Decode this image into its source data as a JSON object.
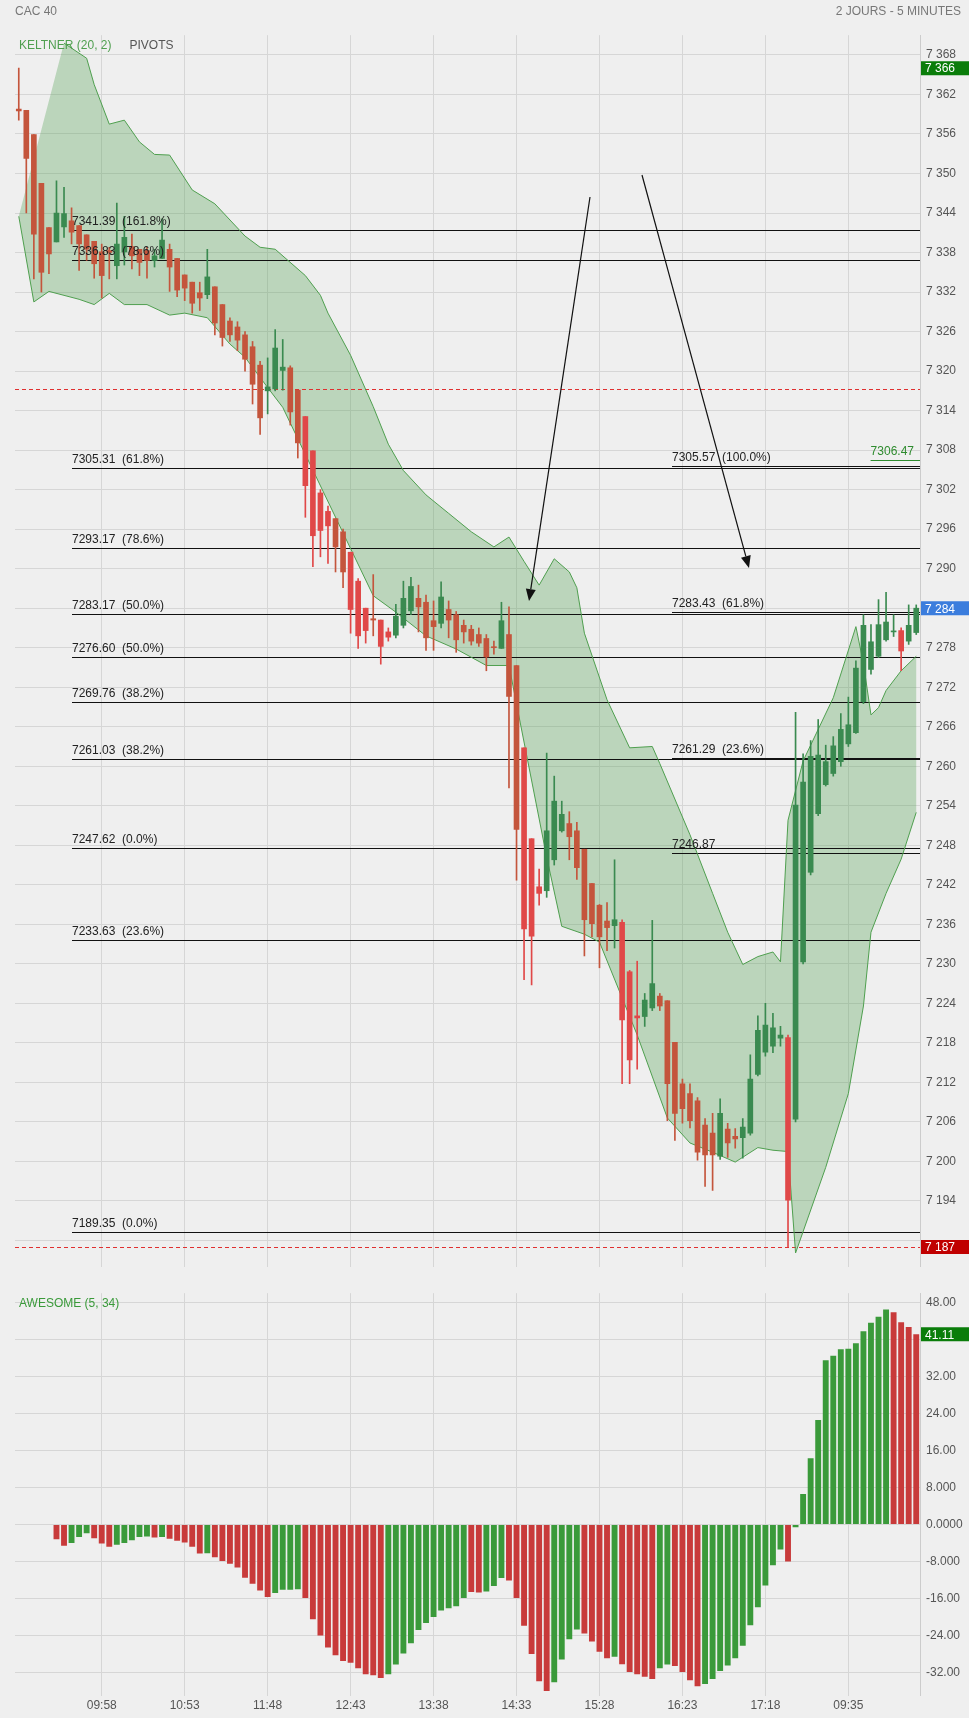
{
  "chart_data": [
    {
      "type": "candlestick",
      "title": "CAC 40",
      "subtitle": "2 JOURS - 5 MINUTES",
      "ohlc": [
        [
          7359.8,
          7366,
          7358.1,
          7359.5
        ],
        [
          7359.6,
          7359.6,
          7344.0,
          7352.3
        ],
        [
          7355.9,
          7355.9,
          7334.0,
          7340.8
        ],
        [
          7348.5,
          7348.5,
          7332.0,
          7335.0
        ],
        [
          7341.8,
          7341.8,
          7334.8,
          7337.8
        ],
        [
          7339.6,
          7348.9,
          7339.6,
          7344.0
        ],
        [
          7341.9,
          7347.9,
          7340.3,
          7343.9
        ],
        [
          7342.8,
          7344.8,
          7339.3,
          7341.1
        ],
        [
          7342.1,
          7342.1,
          7335.3,
          7339.3
        ],
        [
          7340.7,
          7340.7,
          7336.8,
          7338.5
        ],
        [
          7339.7,
          7339.7,
          7334.1,
          7336.3
        ],
        [
          7338.1,
          7339.3,
          7331.1,
          7334.5
        ],
        [
          7338.3,
          7338.8,
          7334.0,
          7338.0
        ],
        [
          7336.0,
          7345.5,
          7334.0,
          7339.3
        ],
        [
          7338.1,
          7343.5,
          7336.1,
          7340.3
        ],
        [
          7338.9,
          7340.8,
          7335.5,
          7337.5
        ],
        [
          7338.5,
          7338.5,
          7334.5,
          7336.5
        ],
        [
          7338.3,
          7338.8,
          7334.1,
          7336.8
        ],
        [
          7336.8,
          7338.5,
          7335.8,
          7337.5
        ],
        [
          7337.1,
          7343.1,
          7337.1,
          7339.9
        ],
        [
          7338.5,
          7339.3,
          7332.1,
          7335.8
        ],
        [
          7337.1,
          7337.1,
          7331.3,
          7332.3
        ],
        [
          7334.6,
          7334.6,
          7330.7,
          7332.6
        ],
        [
          7333.5,
          7333.5,
          7328.8,
          7330.3
        ],
        [
          7331.9,
          7333.5,
          7329.2,
          7331.1
        ],
        [
          7331.6,
          7338.5,
          7331.0,
          7334.3
        ],
        [
          7332.8,
          7332.8,
          7325.5,
          7327.3
        ],
        [
          7330.1,
          7330.1,
          7323.8,
          7325.1
        ],
        [
          7327.6,
          7328.1,
          7324.5,
          7325.5
        ],
        [
          7326.7,
          7327.5,
          7323.1,
          7324.7
        ],
        [
          7325.5,
          7326.0,
          7320.0,
          7321.8
        ],
        [
          7323.7,
          7324.5,
          7315.0,
          7318.0
        ],
        [
          7320.9,
          7321.5,
          7310.4,
          7312.9
        ],
        [
          7317.0,
          7322.0,
          7313.5,
          7317.6
        ],
        [
          7317.3,
          7326.3,
          7317.0,
          7323.5
        ],
        [
          7320.1,
          7324.8,
          7317.1,
          7320.6
        ],
        [
          7320.5,
          7320.8,
          7311.8,
          7313.8
        ],
        [
          7317.1,
          7317.1,
          7306.8,
          7309.1
        ],
        [
          7313.1,
          7313.1,
          7297.8,
          7302.6
        ],
        [
          7307.9,
          7307.9,
          7290.3,
          7295.0
        ],
        [
          7301.5,
          7302.0,
          7291.8,
          7295.8
        ],
        [
          7298.7,
          7299.5,
          7290.8,
          7296.5
        ],
        [
          7297.6,
          7297.6,
          7289.5,
          7293.3
        ],
        [
          7295.6,
          7296.0,
          7287.1,
          7289.5
        ],
        [
          7292.5,
          7292.5,
          7280.2,
          7283.8
        ],
        [
          7288.1,
          7288.5,
          7277.9,
          7279.8
        ],
        [
          7284.0,
          7284.0,
          7278.7,
          7280.6
        ],
        [
          7282.4,
          7289.1,
          7279.8,
          7282.2
        ],
        [
          7282.2,
          7282.2,
          7275.5,
          7278.2
        ],
        [
          7280.4,
          7281.0,
          7279.0,
          7279.6
        ],
        [
          7279.9,
          7284.6,
          7279.5,
          7282.8
        ],
        [
          7281.4,
          7288.1,
          7281.0,
          7285.5
        ],
        [
          7283.6,
          7288.7,
          7283.0,
          7287.3
        ],
        [
          7285.5,
          7287.5,
          7280.4,
          7284.2
        ],
        [
          7284.9,
          7286.0,
          7277.6,
          7279.5
        ],
        [
          7282.1,
          7285.1,
          7277.6,
          7281.2
        ],
        [
          7281.7,
          7288.0,
          7281.0,
          7285.7
        ],
        [
          7283.8,
          7285.1,
          7279.5,
          7282.2
        ],
        [
          7283.0,
          7283.5,
          7277.3,
          7279.2
        ],
        [
          7281.4,
          7282.2,
          7278.7,
          7280.4
        ],
        [
          7280.8,
          7281.4,
          7278.4,
          7279.0
        ],
        [
          7280.0,
          7281.0,
          7278.2,
          7278.7
        ],
        [
          7279.4,
          7280.0,
          7274.5,
          7276.6
        ],
        [
          7278.0,
          7279.0,
          7277.0,
          7278.0
        ],
        [
          7277.9,
          7284.9,
          7277.9,
          7282.1
        ],
        [
          7280.0,
          7284.2,
          7256.7,
          7270.6
        ],
        [
          7275.3,
          7275.3,
          7242.7,
          7250.4
        ],
        [
          7262.8,
          7262.8,
          7227.6,
          7235.3
        ],
        [
          7249.0,
          7249.0,
          7226.8,
          7234.2
        ],
        [
          7241.7,
          7244.4,
          7238.9,
          7240.7
        ],
        [
          7241.1,
          7262.0,
          7240.1,
          7250.2
        ],
        [
          7245.8,
          7258.5,
          7245.0,
          7254.7
        ],
        [
          7250.2,
          7254.7,
          7250.0,
          7252.7
        ],
        [
          7251.3,
          7253.1,
          7245.8,
          7249.3
        ],
        [
          7250.2,
          7251.5,
          7242.8,
          7244.6
        ],
        [
          7247.4,
          7247.4,
          7231.2,
          7236.7
        ],
        [
          7242.2,
          7242.2,
          7234.1,
          7236.1
        ],
        [
          7238.9,
          7239.0,
          7229.4,
          7234.1
        ],
        [
          7236.5,
          7239.3,
          7232.0,
          7235.5
        ],
        [
          7235.8,
          7245.8,
          7232.4,
          7236.7
        ],
        [
          7236.3,
          7236.7,
          7211.8,
          7221.5
        ],
        [
          7228.8,
          7229.0,
          7211.8,
          7215.4
        ],
        [
          7222.1,
          7230.4,
          7214.0,
          7221.8
        ],
        [
          7222.0,
          7225.5,
          7220.5,
          7224.5
        ],
        [
          7223.3,
          7236.6,
          7222.9,
          7227.0
        ],
        [
          7225.1,
          7225.5,
          7222.9,
          7223.6
        ],
        [
          7224.4,
          7224.4,
          7206.2,
          7211.8
        ],
        [
          7218.1,
          7218.1,
          7203.2,
          7207.3
        ],
        [
          7211.8,
          7212.5,
          7205.8,
          7208.0
        ],
        [
          7210.3,
          7211.8,
          7205.1,
          7206.2
        ],
        [
          7209.2,
          7209.7,
          7200.2,
          7201.4
        ],
        [
          7205.5,
          7206.5,
          7196.2,
          7201.0
        ],
        [
          7204.3,
          7207.3,
          7195.6,
          7201.0
        ],
        [
          7200.8,
          7209.5,
          7200.3,
          7207.3
        ],
        [
          7204.9,
          7205.8,
          7200.6,
          7202.8
        ],
        [
          7203.8,
          7205.0,
          7202.0,
          7203.4
        ],
        [
          7203.6,
          7206.5,
          7200.5,
          7205.2
        ],
        [
          7204.3,
          7216.2,
          7204.0,
          7212.5
        ],
        [
          7213.2,
          7222.1,
          7213.0,
          7219.9
        ],
        [
          7216.6,
          7224.0,
          7216.0,
          7220.7
        ],
        [
          7217.5,
          7222.5,
          7216.5,
          7220.3
        ],
        [
          7218.7,
          7220.5,
          7217.5,
          7219.2
        ],
        [
          7218.8,
          7219.2,
          7187.0,
          7194.1
        ],
        [
          7206.4,
          7268.2,
          7206.0,
          7254.1
        ],
        [
          7230.3,
          7261.9,
          7230.0,
          7257.6
        ],
        [
          7243.9,
          7263.9,
          7243.5,
          7261.5
        ],
        [
          7252.8,
          7267.1,
          7252.5,
          7261.7
        ],
        [
          7257.2,
          7263.2,
          7257.0,
          7260.7
        ],
        [
          7258.9,
          7264.5,
          7258.5,
          7263.1
        ],
        [
          7260.7,
          7268.0,
          7260.0,
          7265.6
        ],
        [
          7263.4,
          7270.5,
          7263.0,
          7266.3
        ],
        [
          7265.1,
          7276.0,
          7265.0,
          7274.9
        ],
        [
          7269.8,
          7283.0,
          7269.5,
          7281.4
        ],
        [
          7274.7,
          7281.5,
          7274.0,
          7278.9
        ],
        [
          7276.7,
          7285.3,
          7276.5,
          7281.5
        ],
        [
          7279.2,
          7286.4,
          7279.0,
          7281.9
        ],
        [
          7280.4,
          7283.0,
          7279.7,
          7280.4
        ],
        [
          7280.6,
          7281.0,
          7274.5,
          7277.5
        ],
        [
          7279.0,
          7284.5,
          7278.5,
          7281.4
        ],
        [
          7280.3,
          7284.5,
          7280.0,
          7284.0
        ]
      ],
      "colors": [
        "#c4553c",
        "#c4553c",
        "#c4553c",
        "#c4553c",
        "#c4553c",
        "#3a8a50",
        "#3a8a50",
        "#c4553c",
        "#c4553c",
        "#c4553c",
        "#c4553c",
        "#c4553c",
        "#c4553c",
        "#3a8a50",
        "#3a8a50",
        "#c4553c",
        "#c4553c",
        "#c4553c",
        "#3a8a50",
        "#3a8a50",
        "#c4553c",
        "#c4553c",
        "#c4553c",
        "#c4553c",
        "#c4553c",
        "#3a8a50",
        "#c4553c",
        "#c4553c",
        "#c4553c",
        "#c4553c",
        "#c4553c",
        "#c4553c",
        "#c4553c",
        "#3a8a50",
        "#3a8a50",
        "#3a8a50",
        "#c4553c",
        "#c4553c",
        "#e04848",
        "#e04848",
        "#e04848",
        "#e04848",
        "#c4553c",
        "#c4553c",
        "#e04848",
        "#e04848",
        "#e04848",
        "#c4553c",
        "#e04848",
        "#e04848",
        "#3a8a50",
        "#3a8a50",
        "#3a8a50",
        "#c4553c",
        "#c4553c",
        "#c4553c",
        "#3a8a50",
        "#c4553c",
        "#c4553c",
        "#c4553c",
        "#c4553c",
        "#c4553c",
        "#c4553c",
        "#c4553c",
        "#3a8a50",
        "#c4553c",
        "#c4553c",
        "#e04848",
        "#e04848",
        "#e04848",
        "#3a8a50",
        "#3a8a50",
        "#3a8a50",
        "#c4553c",
        "#c4553c",
        "#c4553c",
        "#c4553c",
        "#c4553c",
        "#c4553c",
        "#3a8a50",
        "#e04848",
        "#e04848",
        "#e04848",
        "#3a8a50",
        "#3a8a50",
        "#c4553c",
        "#c4553c",
        "#c4553c",
        "#c4553c",
        "#c4553c",
        "#c4553c",
        "#c4553c",
        "#c4553c",
        "#3a8a50",
        "#c4553c",
        "#c4553c",
        "#3a8a50",
        "#3a8a50",
        "#3a8a50",
        "#3a8a50",
        "#3a8a50",
        "#3a8a50",
        "#e04848",
        "#3a8a50",
        "#3a8a50",
        "#3a8a50",
        "#3a8a50",
        "#3a8a50",
        "#3a8a50",
        "#3a8a50",
        "#3a8a50",
        "#3a8a50",
        "#3a8a50",
        "#3a8a50",
        "#3a8a50",
        "#3a8a50",
        "#3a8a50",
        "#e04848",
        "#3a8a50",
        "#3a8a50"
      ],
      "series": [
        {
          "name": "KELTNER (20, 2)",
          "type": "line",
          "color": "#4f9f4f",
          "values": [
            null,
            null,
            null,
            null,
            null,
            null,
            7369.8,
            null,
            null,
            7367.5,
            7363.5,
            null,
            7357.5,
            null,
            7358.1,
            null,
            7354.8,
            null,
            7352.9,
            null,
            7352.8,
            null,
            null,
            7347.5,
            null,
            null,
            7345.4,
            null,
            null,
            null,
            7340.5,
            null,
            7338.8,
            null,
            7338.5,
            null,
            null,
            null,
            7334.5,
            null,
            7331.5,
            7328.8,
            null,
            null,
            7322.4,
            null,
            null,
            7314.6,
            null,
            7308.9,
            null,
            7304.9,
            null,
            null,
            7301.2,
            null,
            null,
            7298.4,
            null,
            null,
            7295.6,
            null,
            null,
            7293.3,
            null,
            7294.8,
            null,
            7291.1,
            null,
            7287.5,
            null,
            7291.5,
            null,
            7289.5,
            7287.1,
            7280.2,
            null,
            null,
            7270.1,
            null,
            null,
            7262.8,
            null,
            null,
            7263.0,
            7260.4,
            null,
            null,
            null,
            7249.6,
            null,
            null,
            7240.7,
            null,
            7234.8,
            null,
            7229.9,
            null,
            7231.1,
            null,
            7231.8,
            7230.3,
            7251.8,
            null,
            7260.8,
            null,
            null,
            null,
            7270.4,
            null,
            null,
            7281.2,
            7275.6,
            7267.8,
            7268.9,
            7271.5,
            null,
            7274.5,
            null,
            7276.7
          ]
        },
        {
          "type": "line",
          "color": "#4f9f4f",
          "values": [
            7343.5,
            null,
            7330.5,
            null,
            7332.1,
            null,
            7331.5,
            null,
            7330.9,
            null,
            7330.1,
            null,
            7331.8,
            null,
            7330.1,
            null,
            null,
            7330.1,
            null,
            null,
            7328.5,
            null,
            7328.8,
            null,
            null,
            7328.1,
            null,
            null,
            7324.1,
            null,
            7322.1,
            null,
            null,
            7317.5,
            null,
            7314.5,
            null,
            null,
            null,
            null,
            null,
            null,
            null,
            null,
            null,
            null,
            null,
            7285.9,
            null,
            null,
            7283.4,
            null,
            null,
            null,
            7279.8,
            null,
            null,
            null,
            7277.8,
            null,
            null,
            null,
            7275.3,
            null,
            null,
            7275.3,
            null,
            null,
            null,
            null,
            7246.2,
            null,
            7235.7,
            null,
            null,
            7234.5,
            null,
            7233.3,
            null,
            null,
            null,
            null,
            7219.2,
            null,
            null,
            null,
            7206.6,
            null,
            null,
            7202.8,
            null,
            null,
            7201.4,
            null,
            null,
            7199.9,
            null,
            null,
            7202.1,
            null,
            7201.7,
            null,
            7201.5,
            7186.1,
            null,
            null,
            null,
            7199.1,
            null,
            null,
            7210.3,
            null,
            7223.6,
            7234.8,
            null,
            7240.7,
            null,
            7245.9,
            null,
            7253.0
          ]
        }
      ],
      "ylim": [
        7184,
        7371
      ],
      "yticks": [
        {
          "value": 7188,
          "label": null
        },
        {
          "value": 7194,
          "label": "7 194"
        },
        {
          "value": 7200,
          "label": "7 200"
        },
        {
          "value": 7206,
          "label": "7 206"
        },
        {
          "value": 7212,
          "label": "7 212"
        },
        {
          "value": 7218,
          "label": "7 218"
        },
        {
          "value": 7224,
          "label": "7 224"
        },
        {
          "value": 7230,
          "label": "7 230"
        },
        {
          "value": 7236,
          "label": "7 236"
        },
        {
          "value": 7242,
          "label": "7 242"
        },
        {
          "value": 7248,
          "label": "7 248"
        },
        {
          "value": 7254,
          "label": "7 254"
        },
        {
          "value": 7260,
          "label": "7 260"
        },
        {
          "value": 7266,
          "label": "7 266"
        },
        {
          "value": 7272,
          "label": "7 272"
        },
        {
          "value": 7278,
          "label": "7 278"
        },
        {
          "value": 7284,
          "label": null
        },
        {
          "value": 7290,
          "label": "7 290"
        },
        {
          "value": 7296,
          "label": "7 296"
        },
        {
          "value": 7302,
          "label": "7 302"
        },
        {
          "value": 7308,
          "label": "7 308"
        },
        {
          "value": 7314,
          "label": "7 314"
        },
        {
          "value": 7320,
          "label": "7 320"
        },
        {
          "value": 7326,
          "label": "7 326"
        },
        {
          "value": 7332,
          "label": "7 332"
        },
        {
          "value": 7338,
          "label": "7 338"
        },
        {
          "value": 7344,
          "label": "7 344"
        },
        {
          "value": 7350,
          "label": "7 350"
        },
        {
          "value": 7356,
          "label": "7 356"
        },
        {
          "value": 7362,
          "label": "7 362"
        },
        {
          "value": 7368,
          "label": "7 368"
        },
        {
          "value": 7366,
          "label": "7 366"
        },
        {
          "value": 7284,
          "label": "7 284"
        },
        {
          "value": 7187,
          "label": "7 187"
        }
      ],
      "grid": true,
      "tick_labels": "y",
      "legend": "top left",
      "ref_lines": [
        {
          "axis": "y",
          "value": 7336.83,
          "label": "7336.83  (78.6%)"
        },
        {
          "axis": "y",
          "value": 7305.31,
          "label": "7305.31  (61.8%)"
        },
        {
          "axis": "y",
          "value": 7283.17,
          "label": "7283.17  (50.0%)"
        },
        {
          "axis": "y",
          "value": 7261.03,
          "label": "7261.03  (38.2%)"
        },
        {
          "axis": "y",
          "value": 7233.63,
          "label": "7233.63  (23.6%)"
        },
        {
          "axis": "y",
          "value": 7189.35,
          "label": "7189.35  (0.0%)"
        },
        {
          "axis": "y",
          "value": 7341.39,
          "label": "7341.39  (161.8%)"
        },
        {
          "axis": "y",
          "value": 7305.57,
          "label": "7305.57  (100.0%)"
        },
        {
          "axis": "y",
          "value": 7293.17,
          "label": "7293.17  (78.6%)"
        },
        {
          "axis": "y",
          "value": 7283.43,
          "label": "7283.43  (61.8%)"
        },
        {
          "axis": "y",
          "value": 7276.6,
          "label": "7276.60  (50.0%)"
        },
        {
          "axis": "y",
          "value": 7269.76,
          "label": "7269.76  (38.2%)"
        },
        {
          "axis": "y",
          "value": 7261.29,
          "label": "7261.29  (23.6%)"
        },
        {
          "axis": "y",
          "value": 7247.62,
          "label": "7247.62  (0.0%)"
        },
        {
          "axis": "y",
          "value": 7306.47,
          "label": "7306.47",
          "color": "#2e8b2e"
        },
        {
          "axis": "y",
          "value": 7246.87,
          "label": "7246.87"
        },
        {
          "axis": "y",
          "value": 7317.3,
          "color": "#e03030",
          "line_style": "dashed"
        },
        {
          "axis": "y",
          "value": 7187,
          "color": "#e03030",
          "line_style": "dashed"
        }
      ],
      "annotations": [
        "PIVOTS"
      ]
    },
    {
      "type": "bar",
      "categories": [
        null,
        null,
        null,
        null,
        null,
        null,
        null,
        null,
        null,
        null,
        null,
        "09:58",
        null,
        null,
        null,
        null,
        null,
        null,
        null,
        null,
        null,
        null,
        "10:53",
        null,
        null,
        null,
        null,
        null,
        null,
        null,
        null,
        null,
        null,
        "11:48",
        null,
        null,
        null,
        null,
        null,
        null,
        null,
        null,
        null,
        null,
        "12:43",
        null,
        null,
        null,
        null,
        null,
        null,
        null,
        null,
        null,
        null,
        "13:38",
        null,
        null,
        null,
        null,
        null,
        null,
        null,
        null,
        null,
        null,
        "14:33",
        null,
        null,
        null,
        null,
        null,
        null,
        null,
        null,
        null,
        null,
        "15:28",
        null,
        null,
        null,
        null,
        null,
        null,
        null,
        null,
        null,
        null,
        "16:23",
        null,
        null,
        null,
        null,
        null,
        null,
        null,
        null,
        null,
        null,
        "17:18",
        null,
        null,
        null,
        null,
        null,
        null,
        null,
        null,
        null,
        null,
        "09:35",
        null,
        null,
        null,
        null,
        null,
        null,
        null,
        null,
        null
      ],
      "series": [
        {
          "name": "AWESOME (5, 34)",
          "color": "#3a9a3a",
          "values": [
            null,
            null,
            null,
            null,
            null,
            -3.2,
            -4.6,
            -4.0,
            -2.7,
            -1.9,
            -3.0,
            -4.1,
            -4.8,
            -4.4,
            -4.0,
            -3.4,
            -2.7,
            -2.6,
            -2.8,
            -2.7,
            -3.1,
            -3.5,
            -3.9,
            -4.8,
            -6.3,
            -6.2,
            -7.1,
            -7.9,
            -8.5,
            -9.3,
            -11.5,
            -12.8,
            -14.3,
            -15.7,
            -14.8,
            -14.1,
            -14.1,
            -14.0,
            -15.9,
            -20.5,
            -24.0,
            -26.6,
            -28.3,
            -29.5,
            -29.9,
            -31.1,
            -32.4,
            -32.6,
            -33.2,
            -32.4,
            -30.3,
            -27.9,
            -25.7,
            -22.8,
            -21.3,
            -20.0,
            -18.6,
            -18.1,
            -17.7,
            -15.9,
            -14.6,
            -14.7,
            -14.5,
            -13.3,
            -11.6,
            -12.1,
            -15.9,
            -21.9,
            -28.0,
            -33.9,
            -36.0,
            -34.1,
            -29.2,
            -24.8,
            -22.7,
            -23.6,
            -25.3,
            -27.5,
            -28.9,
            -28.6,
            -30.2,
            -31.9,
            -32.4,
            -32.9,
            -33.4,
            -31.1,
            -30.3,
            -30.6,
            -31.9,
            -33.7,
            -35.0,
            -34.5,
            -33.4,
            -31.7,
            -30.5,
            -28.9,
            -26.2,
            -21.8,
            -17.9,
            -13.2,
            -8.8,
            -5.4,
            -8.0,
            -0.6,
            6.6,
            14.3,
            22.6,
            35.5,
            36.5,
            37.9,
            38.0,
            39.2,
            41.8,
            43.6,
            44.9,
            46.5,
            45.9,
            43.7,
            42.7,
            41.1
          ],
          "colors": [
            null,
            null,
            null,
            null,
            null,
            "#c83a3a",
            "#c83a3a",
            "#3a9a3a",
            "#3a9a3a",
            "#3a9a3a",
            "#c83a3a",
            "#c83a3a",
            "#c83a3a",
            "#3a9a3a",
            "#3a9a3a",
            "#3a9a3a",
            "#3a9a3a",
            "#3a9a3a",
            "#c83a3a",
            "#3a9a3a",
            "#c83a3a",
            "#c83a3a",
            "#c83a3a",
            "#c83a3a",
            "#c83a3a",
            "#3a9a3a",
            "#c83a3a",
            "#c83a3a",
            "#c83a3a",
            "#c83a3a",
            "#c83a3a",
            "#c83a3a",
            "#c83a3a",
            "#c83a3a",
            "#3a9a3a",
            "#3a9a3a",
            "#3a9a3a",
            "#3a9a3a",
            "#c83a3a",
            "#c83a3a",
            "#c83a3a",
            "#c83a3a",
            "#c83a3a",
            "#c83a3a",
            "#c83a3a",
            "#c83a3a",
            "#c83a3a",
            "#c83a3a",
            "#c83a3a",
            "#3a9a3a",
            "#3a9a3a",
            "#3a9a3a",
            "#3a9a3a",
            "#3a9a3a",
            "#3a9a3a",
            "#3a9a3a",
            "#3a9a3a",
            "#3a9a3a",
            "#3a9a3a",
            "#3a9a3a",
            "#c83a3a",
            "#c83a3a",
            "#3a9a3a",
            "#3a9a3a",
            "#3a9a3a",
            "#c83a3a",
            "#c83a3a",
            "#c83a3a",
            "#c83a3a",
            "#c83a3a",
            "#c83a3a",
            "#3a9a3a",
            "#3a9a3a",
            "#3a9a3a",
            "#3a9a3a",
            "#c83a3a",
            "#c83a3a",
            "#c83a3a",
            "#c83a3a",
            "#3a9a3a",
            "#c83a3a",
            "#c83a3a",
            "#c83a3a",
            "#c83a3a",
            "#c83a3a",
            "#3a9a3a",
            "#3a9a3a",
            "#c83a3a",
            "#c83a3a",
            "#c83a3a",
            "#c83a3a",
            "#3a9a3a",
            "#3a9a3a",
            "#3a9a3a",
            "#3a9a3a",
            "#3a9a3a",
            "#3a9a3a",
            "#3a9a3a",
            "#3a9a3a",
            "#3a9a3a",
            "#3a9a3a",
            "#3a9a3a",
            "#c83a3a",
            "#3a9a3a",
            "#3a9a3a",
            "#3a9a3a",
            "#3a9a3a",
            "#3a9a3a",
            "#3a9a3a",
            "#3a9a3a",
            "#3a9a3a",
            "#3a9a3a",
            "#3a9a3a",
            "#3a9a3a",
            "#3a9a3a",
            "#3a9a3a",
            "#c83a3a",
            "#c83a3a",
            "#c83a3a",
            "#c83a3a"
          ]
        }
      ],
      "ylim": [
        -37,
        50
      ],
      "yticks": [
        {
          "value": -32,
          "label": "-32.00"
        },
        {
          "value": -24,
          "label": "-24.00"
        },
        {
          "value": -16,
          "label": "-16.00"
        },
        {
          "value": -8,
          "label": "-8.000"
        },
        {
          "value": 0,
          "label": "0.0000"
        },
        {
          "value": 8,
          "label": "8.000"
        },
        {
          "value": 16,
          "label": "16.00"
        },
        {
          "value": 24,
          "label": "24.00"
        },
        {
          "value": 32,
          "label": "32.00"
        },
        {
          "value": 40,
          "label": null
        },
        {
          "value": 48,
          "label": "48.00"
        },
        {
          "value": 41.11,
          "label": "41.11"
        }
      ],
      "grid": true,
      "legend": "top left"
    }
  ]
}
